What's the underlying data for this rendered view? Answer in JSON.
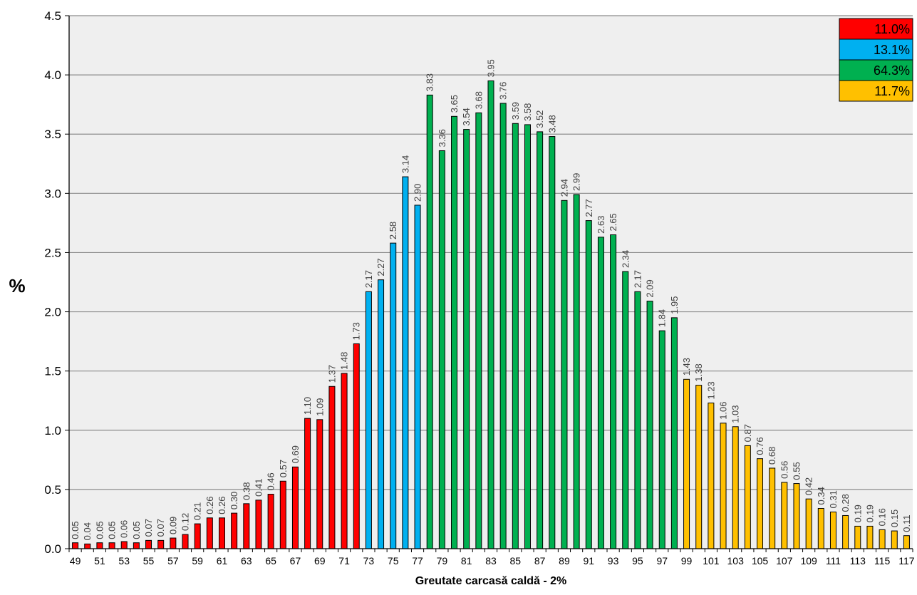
{
  "chart_data": {
    "type": "bar",
    "title": "",
    "xlabel": "Greutate carcasă caldă - 2%",
    "ylabel": "%",
    "ylim": [
      0,
      4.5
    ],
    "yticks": [
      "0.0",
      "0.5",
      "1.0",
      "1.5",
      "2.0",
      "2.5",
      "3.0",
      "3.5",
      "4.0",
      "4.5"
    ],
    "grid": "horizontal",
    "legend_position": "top-right",
    "categories": [
      49,
      50,
      51,
      52,
      53,
      54,
      55,
      56,
      57,
      58,
      59,
      60,
      61,
      62,
      63,
      64,
      65,
      66,
      67,
      68,
      69,
      70,
      71,
      72,
      73,
      74,
      75,
      76,
      77,
      78,
      79,
      80,
      81,
      82,
      83,
      84,
      85,
      86,
      87,
      88,
      89,
      90,
      91,
      92,
      93,
      94,
      95,
      96,
      97,
      98,
      99,
      100,
      101,
      102,
      103,
      104,
      105,
      106,
      107,
      108,
      109,
      110,
      111,
      112,
      113,
      114,
      115,
      116,
      117
    ],
    "values": [
      0.05,
      0.04,
      0.05,
      0.05,
      0.06,
      0.05,
      0.07,
      0.07,
      0.09,
      0.12,
      0.21,
      0.26,
      0.26,
      0.3,
      0.38,
      0.41,
      0.46,
      0.57,
      0.69,
      1.1,
      1.09,
      1.37,
      1.48,
      1.73,
      2.17,
      2.27,
      2.58,
      3.14,
      2.9,
      3.83,
      3.36,
      3.65,
      3.54,
      3.68,
      3.95,
      3.76,
      3.59,
      3.58,
      3.52,
      3.48,
      2.94,
      2.99,
      2.77,
      2.63,
      2.65,
      2.34,
      2.17,
      2.09,
      1.84,
      1.95,
      1.43,
      1.38,
      1.23,
      1.06,
      1.03,
      0.87,
      0.76,
      0.68,
      0.56,
      0.55,
      0.42,
      0.34,
      0.31,
      0.28,
      0.19,
      0.19,
      0.16,
      0.15,
      0.11
    ],
    "value_labels": [
      "0.05",
      "0.04",
      "0.05",
      "0.05",
      "0.06",
      "0.05",
      "0.07",
      "0.07",
      "0.09",
      "0.12",
      "0.21",
      "0.26",
      "0.26",
      "0.30",
      "0.38",
      "0.41",
      "0.46",
      "0.57",
      "0.69",
      "1.10",
      "1.09",
      "1.37",
      "1.48",
      "1.73",
      "2.17",
      "2.27",
      "2.58",
      "3.14",
      "2.90",
      "3.83",
      "3.36",
      "3.65",
      "3.54",
      "3.68",
      "3.95",
      "3.76",
      "3.59",
      "3.58",
      "3.52",
      "3.48",
      "2.94",
      "2.99",
      "2.77",
      "2.63",
      "2.65",
      "2.34",
      "2.17",
      "2.09",
      "1.84",
      "1.95",
      "1.43",
      "1.38",
      "1.23",
      "1.06",
      "1.03",
      "0.87",
      "0.76",
      "0.68",
      "0.56",
      "0.55",
      "0.42",
      "0.34",
      "0.31",
      "0.28",
      "0.19",
      "0.19",
      "0.16",
      "0.15",
      "0.11"
    ],
    "segments": [
      {
        "from": 49,
        "to": 72,
        "color": "#ff0000",
        "share": "11.0%"
      },
      {
        "from": 73,
        "to": 77,
        "color": "#00b0f0",
        "share": "13.1%"
      },
      {
        "from": 78,
        "to": 98,
        "color": "#00b050",
        "share": "64.3%"
      },
      {
        "from": 99,
        "to": 117,
        "color": "#ffc000",
        "share": "11.7%"
      }
    ]
  }
}
